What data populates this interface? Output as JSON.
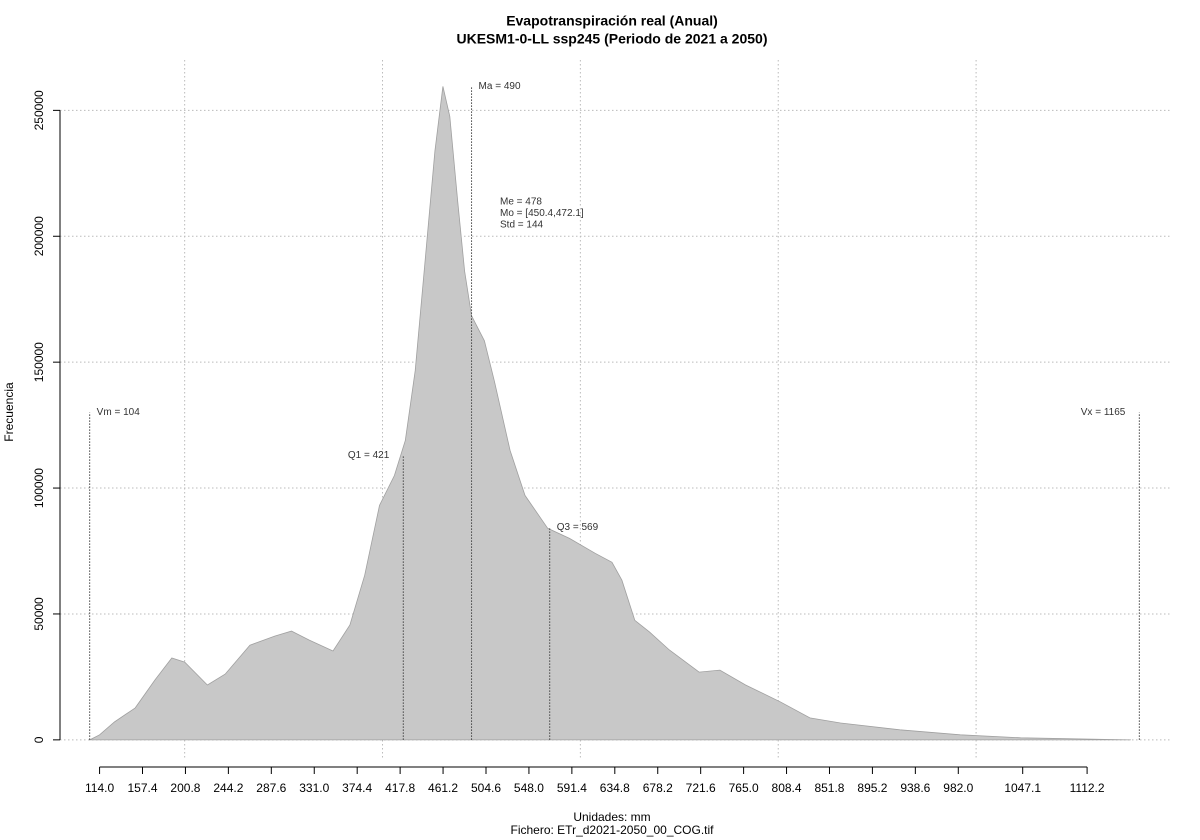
{
  "chart_data": {
    "type": "density",
    "title": "Evapotranspiración real (Anual)",
    "subtitle": "UKESM1-0-LL ssp245 (Periodo de 2021 a 2050)",
    "x_label": "Unidades: mm",
    "caption": "Fichero: ETr_d2021-2050_00_COG.tif",
    "y_label": "Frecuencia",
    "color": "#c8c8c8",
    "x": [
      104,
      114,
      129,
      150,
      170,
      187,
      200,
      223,
      241,
      266,
      291,
      308,
      326,
      350,
      367,
      382,
      397,
      412,
      423,
      433,
      443,
      453,
      461,
      468,
      476,
      483,
      490,
      503,
      513,
      529,
      544,
      567,
      589,
      615,
      632,
      642,
      655,
      670,
      690,
      720,
      741,
      767,
      802,
      832,
      863,
      923,
      984,
      1045,
      1156
    ],
    "values": [
      0,
      2000,
      7100,
      12700,
      23800,
      32500,
      30900,
      21800,
      26100,
      37600,
      41200,
      43200,
      39600,
      35300,
      45600,
      65400,
      93100,
      105000,
      118900,
      146600,
      190200,
      233800,
      259500,
      247600,
      213900,
      186200,
      168400,
      158500,
      142600,
      114900,
      97100,
      84000,
      80000,
      74100,
      70500,
      63400,
      47500,
      42800,
      35700,
      26900,
      27700,
      21800,
      15100,
      8700,
      6700,
      4000,
      2000,
      800,
      0
    ],
    "xlim": [
      74,
      1196
    ],
    "ylim": [
      -8000,
      270000
    ],
    "xticks": [
      {
        "value": 114,
        "label": "114.0"
      },
      157.4,
      200.8,
      244.2,
      287.6,
      {
        "value": 331,
        "label": "331.0"
      },
      374.4,
      417.8,
      461.2,
      504.6,
      {
        "value": 548,
        "label": "548.0"
      },
      591.4,
      634.8,
      678.2,
      721.6,
      {
        "value": 765,
        "label": "765.0"
      },
      808.4,
      851.8,
      895.2,
      938.6,
      {
        "value": 982,
        "label": "982.0"
      },
      1047.1,
      1112.2
    ],
    "yticks": [
      0,
      50000,
      100000,
      150000,
      200000,
      250000
    ],
    "xgrid": [
      200,
      400,
      600,
      800,
      1000
    ],
    "grid": true,
    "markers": [
      {
        "label": "Vm = 104",
        "x": 104,
        "y": 130000,
        "label_side": "right"
      },
      {
        "label": "Q1 = 421",
        "x": 421,
        "y": 113000,
        "label_side": "left"
      },
      {
        "label": "Ma = 490",
        "x": 490,
        "y": 259500,
        "label_side": "right"
      },
      {
        "label": "Q3 = 569",
        "x": 569,
        "y": 84400,
        "label_side": "right"
      },
      {
        "label": "Vx = 1165",
        "x": 1165,
        "y": 130000,
        "label_side": "left"
      }
    ],
    "stats": [
      "Me = 478",
      "Mo = [450.4,472.1]",
      "Std = 144"
    ]
  }
}
